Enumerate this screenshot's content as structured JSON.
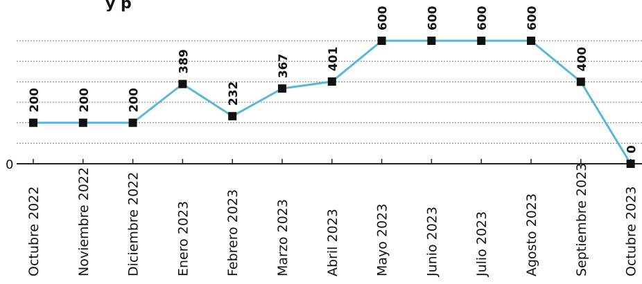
{
  "title_fragment": "y p",
  "chart_data": {
    "type": "line",
    "categories": [
      "Octubre 2022",
      "Noviembre 2022",
      "Diciembre 2022",
      "Enero 2023",
      "Febrero 2023",
      "Marzo 2023",
      "Abril 2023",
      "Mayo 2023",
      "Junio 2023",
      "Julio 2023",
      "Agosto 2023",
      "Septiembre 2023",
      "Octubre 2023"
    ],
    "values": [
      200,
      200,
      200,
      389,
      232,
      367,
      401,
      600,
      600,
      600,
      600,
      400,
      0
    ],
    "data_labels": [
      "200",
      "200",
      "200",
      "389",
      "232",
      "367",
      "401",
      "600",
      "600",
      "600",
      "600",
      "400",
      "0"
    ],
    "y_zero_label": "0",
    "ylim": [
      0,
      600
    ],
    "grid": true,
    "line_color": "#5ab6d6",
    "marker_color": "#111111"
  }
}
